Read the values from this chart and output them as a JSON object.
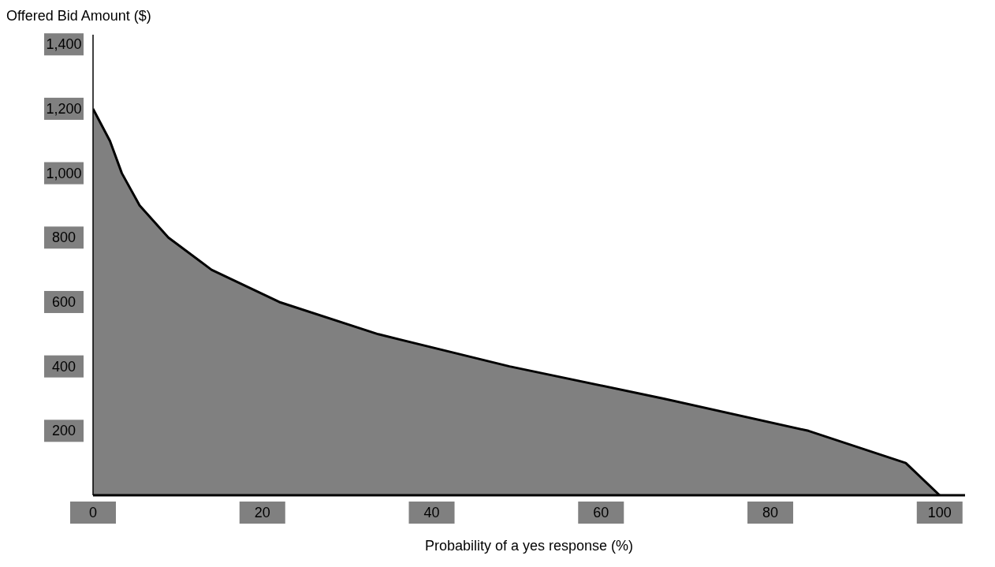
{
  "chart_data": {
    "type": "area",
    "xlabel": "Probability of a yes response (%)",
    "ylabel": "Offered Bid Amount ($)",
    "x": [
      0,
      2,
      3.4,
      5.5,
      8.9,
      14,
      22,
      33.7,
      49.2,
      67.4,
      84.5,
      96,
      100
    ],
    "values": [
      1200,
      1100,
      1000,
      900,
      800,
      700,
      600,
      500,
      400,
      300,
      200,
      100,
      0
    ],
    "color": "#808080",
    "xlim": [
      0,
      103
    ],
    "xticks": [
      0,
      20,
      40,
      60,
      80,
      100
    ],
    "ylim": [
      0,
      1430
    ],
    "yticks": [
      {
        "value": 200,
        "label": "200"
      },
      {
        "value": 400,
        "label": "400"
      },
      {
        "value": 600,
        "label": "600"
      },
      {
        "value": 800,
        "label": "800"
      },
      {
        "value": 1000,
        "label": "1,000"
      },
      {
        "value": 1200,
        "label": "1,200"
      },
      {
        "value": 1400,
        "label": "1,400"
      }
    ],
    "grid": false,
    "marker": "none"
  }
}
